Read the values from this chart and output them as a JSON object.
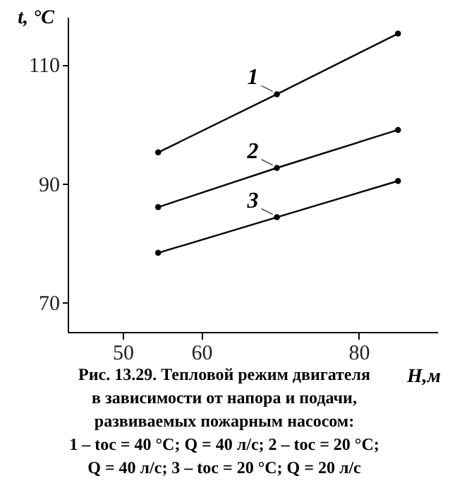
{
  "chart_data": {
    "type": "line",
    "title": "Рис. 13.29. Тепловой режим двигателя в зависимости от напора и подачи, развиваемых пожарным насосом:",
    "xlabel": "H,м",
    "ylabel": "t, °C",
    "x": [
      54.5,
      69.6,
      85
    ],
    "series": [
      {
        "name": "1",
        "color": "#000000",
        "values": [
          95.2,
          105,
          115.2
        ]
      },
      {
        "name": "2",
        "color": "#000000",
        "values": [
          86,
          92.6,
          99
        ]
      },
      {
        "name": "3",
        "color": "#000000",
        "values": [
          78.3,
          84.3,
          90.4
        ]
      }
    ],
    "xlim": [
      43,
      90
    ],
    "xticks": [
      50,
      60,
      80
    ],
    "ylim": [
      65,
      118
    ],
    "yticks": [
      70,
      90,
      110
    ],
    "grid": false,
    "marker": "circle",
    "line_style": "solid",
    "annotations": [
      "1 – tос = 40 °C; Q = 40 л/с; 2 – tос = 20 °C;",
      "Q = 40 л/с; 3 – tос = 20 °C; Q = 20 л/с"
    ]
  }
}
